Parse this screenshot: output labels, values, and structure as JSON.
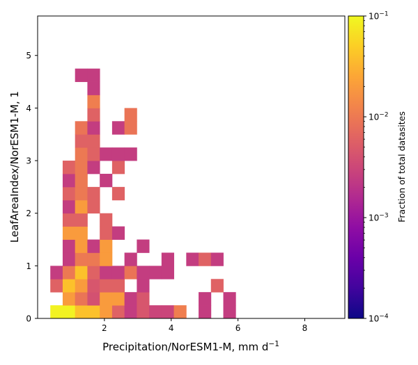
{
  "chart_data": {
    "type": "heatmap",
    "xlabel_main": "Precipitation/NorESM1-M,  mm d",
    "xlabel_sup": "−1",
    "ylabel": "LeafAreaIndex/NorESM1-M,  1",
    "xlim": [
      0,
      9.2
    ],
    "ylim": [
      0,
      5.75
    ],
    "x_bin_width": 0.37,
    "y_bin_width": 0.25,
    "x_bin_origin": 0.38,
    "y_bin_origin": 0,
    "xticks": [
      {
        "v": 2,
        "label": "2"
      },
      {
        "v": 4,
        "label": "4"
      },
      {
        "v": 6,
        "label": "6"
      },
      {
        "v": 8,
        "label": "8"
      }
    ],
    "yticks": [
      {
        "v": 0,
        "label": "0"
      },
      {
        "v": 1,
        "label": "1"
      },
      {
        "v": 2,
        "label": "2"
      },
      {
        "v": 3,
        "label": "3"
      },
      {
        "v": 4,
        "label": "4"
      },
      {
        "v": 5,
        "label": "5"
      }
    ],
    "colorscale": "plasma",
    "log_color": true,
    "colorbar": {
      "label": "Fraction of total datasites",
      "range": [
        0.0001,
        0.1
      ],
      "ticks": [
        {
          "v": 0.1,
          "base": "10",
          "exp": "−1"
        },
        {
          "v": 0.01,
          "base": "10",
          "exp": "−2"
        },
        {
          "v": 0.001,
          "base": "10",
          "exp": "−3"
        },
        {
          "v": 0.0001,
          "base": "10",
          "exp": "−4"
        }
      ]
    },
    "cells": [
      {
        "i": 0,
        "j": 0,
        "v": 0.09
      },
      {
        "i": 1,
        "j": 0,
        "v": 0.09
      },
      {
        "i": 2,
        "j": 0,
        "v": 0.04
      },
      {
        "i": 3,
        "j": 0,
        "v": 0.04
      },
      {
        "i": 4,
        "j": 0,
        "v": 0.02
      },
      {
        "i": 5,
        "j": 0,
        "v": 0.006
      },
      {
        "i": 6,
        "j": 0,
        "v": 0.0025
      },
      {
        "i": 7,
        "j": 0,
        "v": 0.0045
      },
      {
        "i": 8,
        "j": 0,
        "v": 0.003
      },
      {
        "i": 9,
        "j": 0,
        "v": 0.003
      },
      {
        "i": 10,
        "j": 0,
        "v": 0.011
      },
      {
        "i": 12,
        "j": 0,
        "v": 0.0025
      },
      {
        "i": 14,
        "j": 0,
        "v": 0.0025
      },
      {
        "i": 1,
        "j": 1,
        "v": 0.02
      },
      {
        "i": 2,
        "j": 1,
        "v": 0.009
      },
      {
        "i": 3,
        "j": 1,
        "v": 0.004
      },
      {
        "i": 4,
        "j": 1,
        "v": 0.02
      },
      {
        "i": 5,
        "j": 1,
        "v": 0.02
      },
      {
        "i": 6,
        "j": 1,
        "v": 0.0025
      },
      {
        "i": 7,
        "j": 1,
        "v": 0.0045
      },
      {
        "i": 12,
        "j": 1,
        "v": 0.0025
      },
      {
        "i": 14,
        "j": 1,
        "v": 0.0025
      },
      {
        "i": 0,
        "j": 2,
        "v": 0.006
      },
      {
        "i": 1,
        "j": 2,
        "v": 0.04
      },
      {
        "i": 2,
        "j": 2,
        "v": 0.02
      },
      {
        "i": 3,
        "j": 2,
        "v": 0.0045
      },
      {
        "i": 4,
        "j": 2,
        "v": 0.006
      },
      {
        "i": 5,
        "j": 2,
        "v": 0.006
      },
      {
        "i": 7,
        "j": 2,
        "v": 0.0025
      },
      {
        "i": 13,
        "j": 2,
        "v": 0.006
      },
      {
        "i": 0,
        "j": 3,
        "v": 0.0025
      },
      {
        "i": 1,
        "j": 3,
        "v": 0.01
      },
      {
        "i": 2,
        "j": 3,
        "v": 0.04
      },
      {
        "i": 3,
        "j": 3,
        "v": 0.006
      },
      {
        "i": 4,
        "j": 3,
        "v": 0.0025
      },
      {
        "i": 5,
        "j": 3,
        "v": 0.0025
      },
      {
        "i": 6,
        "j": 3,
        "v": 0.009
      },
      {
        "i": 7,
        "j": 3,
        "v": 0.0025
      },
      {
        "i": 8,
        "j": 3,
        "v": 0.0025
      },
      {
        "i": 9,
        "j": 3,
        "v": 0.0025
      },
      {
        "i": 1,
        "j": 4,
        "v": 0.0025
      },
      {
        "i": 2,
        "j": 4,
        "v": 0.01
      },
      {
        "i": 3,
        "j": 4,
        "v": 0.01
      },
      {
        "i": 4,
        "j": 4,
        "v": 0.02
      },
      {
        "i": 6,
        "j": 4,
        "v": 0.0025
      },
      {
        "i": 9,
        "j": 4,
        "v": 0.0025
      },
      {
        "i": 11,
        "j": 4,
        "v": 0.0025
      },
      {
        "i": 12,
        "j": 4,
        "v": 0.006
      },
      {
        "i": 13,
        "j": 4,
        "v": 0.0025
      },
      {
        "i": 1,
        "j": 5,
        "v": 0.0025
      },
      {
        "i": 2,
        "j": 5,
        "v": 0.02
      },
      {
        "i": 3,
        "j": 5,
        "v": 0.0025
      },
      {
        "i": 4,
        "j": 5,
        "v": 0.02
      },
      {
        "i": 7,
        "j": 5,
        "v": 0.0025
      },
      {
        "i": 1,
        "j": 6,
        "v": 0.02
      },
      {
        "i": 2,
        "j": 6,
        "v": 0.02
      },
      {
        "i": 4,
        "j": 6,
        "v": 0.006
      },
      {
        "i": 5,
        "j": 6,
        "v": 0.0025
      },
      {
        "i": 1,
        "j": 7,
        "v": 0.006
      },
      {
        "i": 2,
        "j": 7,
        "v": 0.006
      },
      {
        "i": 4,
        "j": 7,
        "v": 0.006
      },
      {
        "i": 1,
        "j": 8,
        "v": 0.0025
      },
      {
        "i": 2,
        "j": 8,
        "v": 0.02
      },
      {
        "i": 3,
        "j": 8,
        "v": 0.006
      },
      {
        "i": 1,
        "j": 9,
        "v": 0.006
      },
      {
        "i": 2,
        "j": 9,
        "v": 0.01
      },
      {
        "i": 3,
        "j": 9,
        "v": 0.006
      },
      {
        "i": 5,
        "j": 9,
        "v": 0.006
      },
      {
        "i": 1,
        "j": 10,
        "v": 0.0025
      },
      {
        "i": 2,
        "j": 10,
        "v": 0.01
      },
      {
        "i": 4,
        "j": 10,
        "v": 0.0025
      },
      {
        "i": 1,
        "j": 11,
        "v": 0.006
      },
      {
        "i": 2,
        "j": 11,
        "v": 0.01
      },
      {
        "i": 3,
        "j": 11,
        "v": 0.0025
      },
      {
        "i": 5,
        "j": 11,
        "v": 0.006
      },
      {
        "i": 2,
        "j": 12,
        "v": 0.01
      },
      {
        "i": 3,
        "j": 12,
        "v": 0.006
      },
      {
        "i": 4,
        "j": 12,
        "v": 0.0025
      },
      {
        "i": 5,
        "j": 12,
        "v": 0.0025
      },
      {
        "i": 6,
        "j": 12,
        "v": 0.0025
      },
      {
        "i": 2,
        "j": 13,
        "v": 0.006
      },
      {
        "i": 3,
        "j": 13,
        "v": 0.006
      },
      {
        "i": 2,
        "j": 14,
        "v": 0.009
      },
      {
        "i": 3,
        "j": 14,
        "v": 0.0025
      },
      {
        "i": 5,
        "j": 14,
        "v": 0.0025
      },
      {
        "i": 6,
        "j": 14,
        "v": 0.009
      },
      {
        "i": 3,
        "j": 15,
        "v": 0.006
      },
      {
        "i": 6,
        "j": 15,
        "v": 0.009
      },
      {
        "i": 3,
        "j": 16,
        "v": 0.011
      },
      {
        "i": 3,
        "j": 17,
        "v": 0.0025
      },
      {
        "i": 2,
        "j": 18,
        "v": 0.0025
      },
      {
        "i": 3,
        "j": 18,
        "v": 0.0025
      }
    ]
  }
}
